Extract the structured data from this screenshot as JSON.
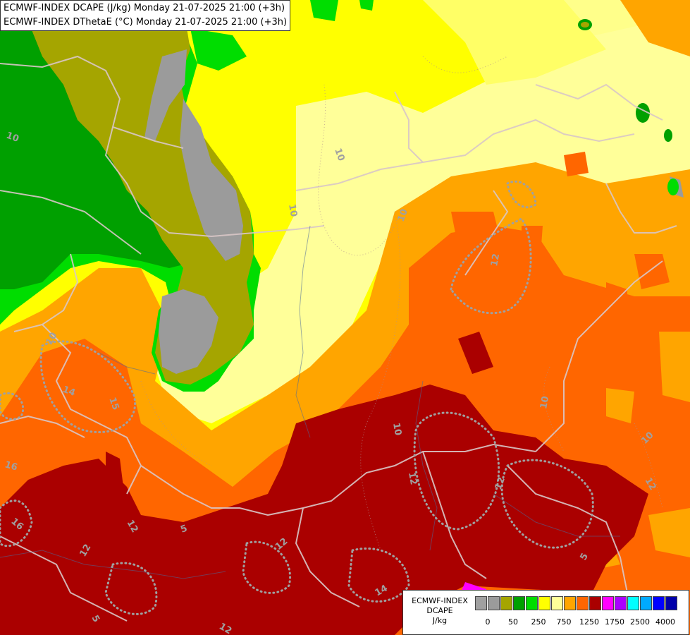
{
  "map": {
    "titles": [
      "ECMWF-INDEX DCAPE (J/kg) Monday 21-07-2025 21:00 (+3h)",
      "ECMWF-INDEX DThetaE (°C) Monday 21-07-2025 21:00 (+3h)"
    ],
    "contour_labels": [
      "10",
      "10",
      "10",
      "12",
      "14",
      "15",
      "16",
      "16",
      "10",
      "12",
      "12",
      "10",
      "12",
      "10",
      "5",
      "12",
      "5",
      "14",
      "12",
      "10",
      "12",
      "10",
      "12",
      "5"
    ]
  },
  "legend": {
    "name_lines": [
      "ECMWF-INDEX",
      "DCAPE",
      "J/kg"
    ],
    "colors": [
      "#a0a0a0",
      "#9b9b9b",
      "#a5a500",
      "#00a000",
      "#00dd00",
      "#ffff00",
      "#ffff99",
      "#ffa500",
      "#ff6600",
      "#aa0000",
      "#ff00ff",
      "#aa00ff",
      "#00ffff",
      "#00aaff",
      "#0000ff",
      "#0000aa"
    ],
    "tick_labels": [
      "0",
      "50",
      "250",
      "750",
      "1250",
      "1750",
      "2500",
      "4000"
    ]
  }
}
